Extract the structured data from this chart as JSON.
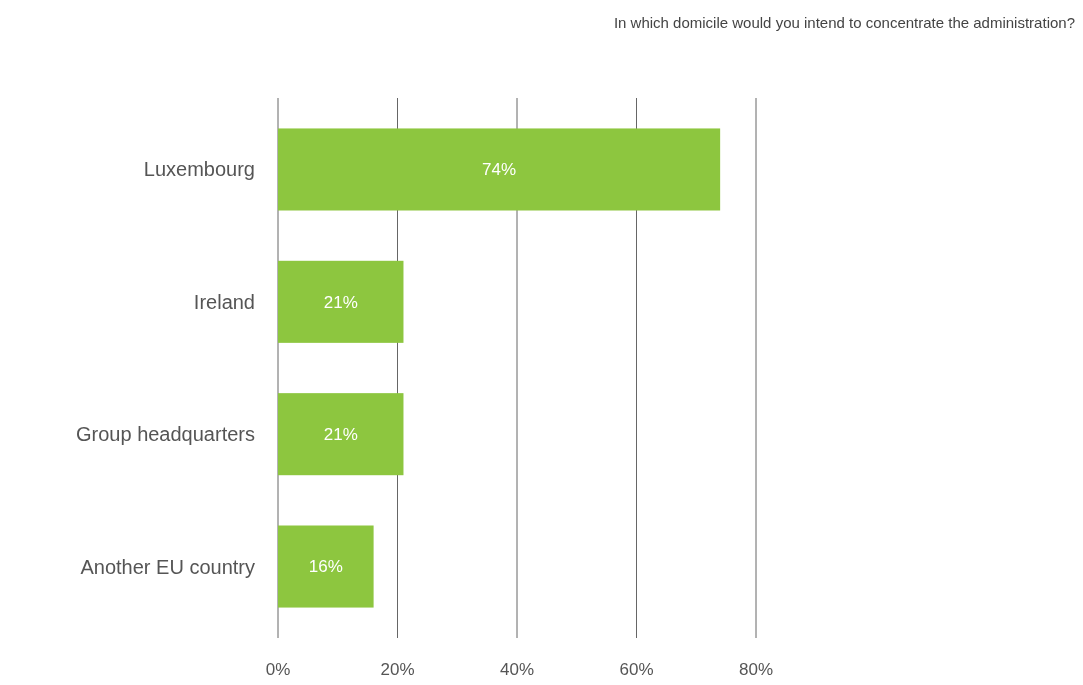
{
  "chart_data": {
    "type": "bar",
    "orientation": "horizontal",
    "title": "In which domicile would you intend to concentrate the administration?",
    "categories": [
      "Luxembourg",
      "Ireland",
      "Group headquarters",
      "Another EU country"
    ],
    "values": [
      74,
      21,
      21,
      16
    ],
    "color": "#8dc63f",
    "xlim": [
      0,
      80
    ],
    "xticks": [
      {
        "value": 0,
        "label": "0%"
      },
      {
        "value": 20,
        "label": "20%"
      },
      {
        "value": 40,
        "label": "40%"
      },
      {
        "value": 60,
        "label": "60%"
      },
      {
        "value": 80,
        "label": "80%"
      }
    ],
    "value_labels": [
      "74%",
      "21%",
      "21%",
      "16%"
    ],
    "grid": "x"
  }
}
